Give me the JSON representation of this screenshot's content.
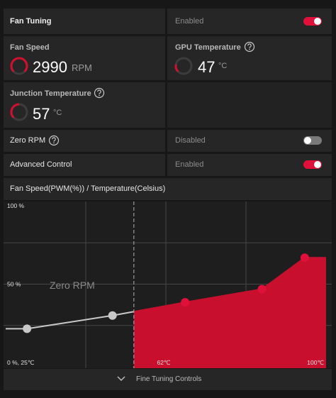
{
  "header": {
    "title": "Fan Tuning",
    "status": "Enabled",
    "toggle_on": true
  },
  "fan_speed": {
    "label": "Fan Speed",
    "value": 2990,
    "unit": "RPM"
  },
  "gpu_temperature": {
    "label": "GPU Temperature",
    "value": 47,
    "unit": "°C"
  },
  "junction_temperature": {
    "label": "Junction Temperature",
    "value": 57,
    "unit": "°C"
  },
  "zero_rpm": {
    "label": "Zero RPM",
    "status": "Disabled",
    "toggle_on": false
  },
  "advanced_control": {
    "label": "Advanced Control",
    "status": "Enabled",
    "toggle_on": true
  },
  "chart_data": {
    "type": "line",
    "title": "Fan Speed(PWM(%)) / Temperature(Celsius)",
    "annotation": "Zero RPM",
    "zero_rpm_temp": 55,
    "x": [
      30,
      50,
      67,
      85,
      95
    ],
    "values": [
      23,
      31,
      39,
      47,
      66
    ],
    "color": "#c8102e",
    "xlim": [
      25,
      100
    ],
    "ylim": [
      0,
      100
    ],
    "xticks": [
      {
        "value": 62,
        "label": "62℃"
      },
      {
        "value": 100,
        "label": "100℃"
      }
    ],
    "yticks": [
      {
        "value": 0,
        "label": "0 %, 25℃"
      },
      {
        "value": 50,
        "label": "50 %"
      },
      {
        "value": 100,
        "label": "100 %"
      }
    ],
    "xgrid": [
      43.75,
      62.5,
      81.25
    ],
    "ygrid": [
      25,
      50,
      75
    ]
  },
  "footer": {
    "label": "Fine Tuning Controls"
  }
}
